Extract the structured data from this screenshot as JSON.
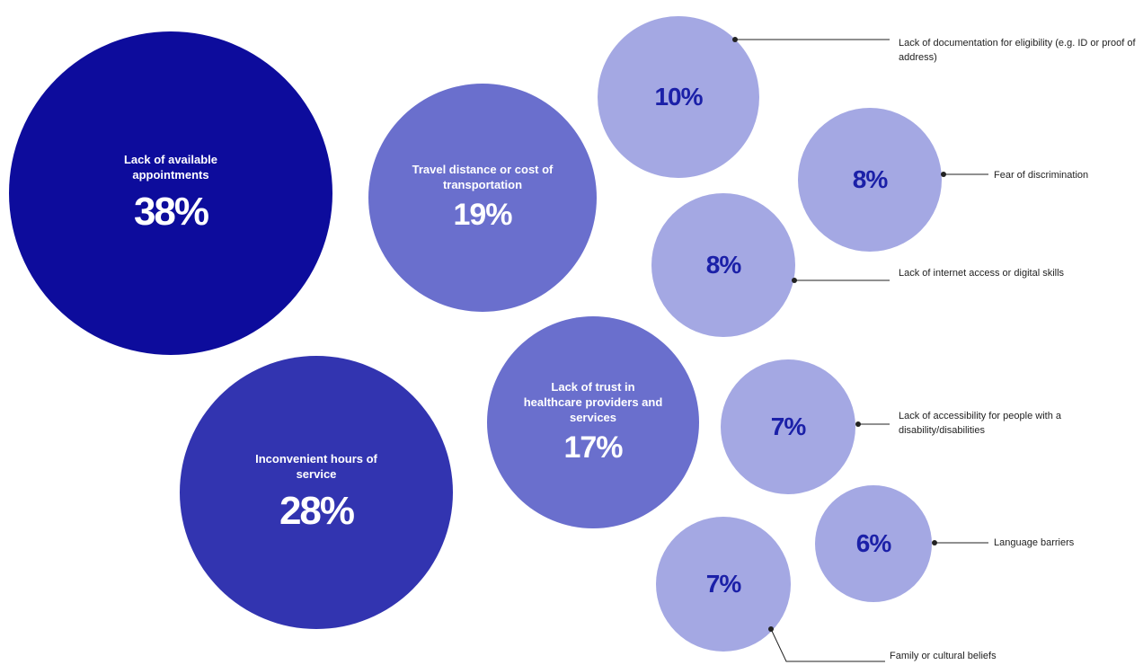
{
  "chart_data": {
    "type": "bubble",
    "colors": {
      "level1": "#0d0c9c",
      "level2": "#3234b0",
      "level3": "#6a6fcd",
      "level4": "#a4a8e3",
      "small_text": "#1b20a8",
      "leader": "#222222"
    },
    "items": [
      {
        "label": "Lack of available appointments",
        "value": 38,
        "value_label": "38%"
      },
      {
        "label": "Inconvenient hours of service",
        "value": 28,
        "value_label": "28%"
      },
      {
        "label": "Travel distance or cost of transportation",
        "value": 19,
        "value_label": "19%"
      },
      {
        "label": "Lack of trust in healthcare providers and services",
        "value": 17,
        "value_label": "17%"
      },
      {
        "label": "Lack of documentation for eligibility (e.g. ID or proof of address)",
        "value": 10,
        "value_label": "10%"
      },
      {
        "label": "Fear of discrimination",
        "value": 8,
        "value_label": "8%"
      },
      {
        "label": "Lack of internet access or digital skills",
        "value": 8,
        "value_label": "8%"
      },
      {
        "label": "Lack of accessibility for people with a disability/disabilities",
        "value": 7,
        "value_label": "7%"
      },
      {
        "label": "Family or cultural beliefs",
        "value": 7,
        "value_label": "7%"
      },
      {
        "label": "Language barriers",
        "value": 6,
        "value_label": "6%"
      }
    ]
  }
}
